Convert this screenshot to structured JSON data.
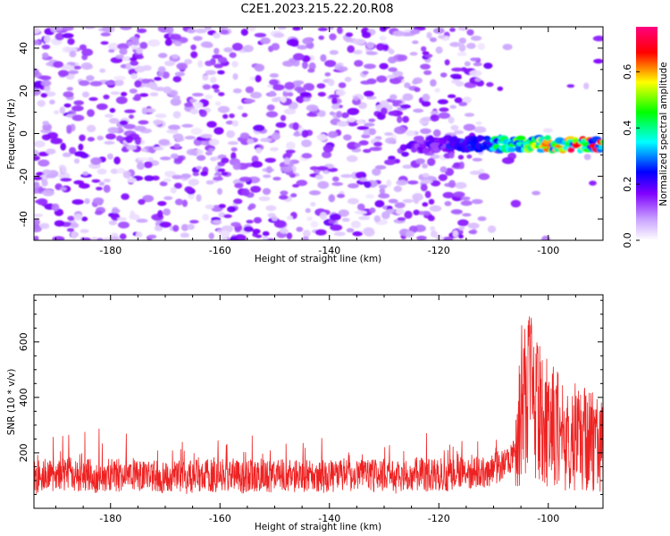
{
  "figure": {
    "title": "C2E1.2023.215.22.20.R08"
  },
  "chart_data": [
    {
      "type": "heatmap",
      "xlabel": "Height of straight line (km)",
      "ylabel": "Frequency (Hz)",
      "xlim": [
        -194,
        -90
      ],
      "ylim": [
        -50,
        50
      ],
      "xticks": [
        -180,
        -160,
        -140,
        -120,
        -100
      ],
      "yticks": [
        -40,
        -20,
        0,
        20,
        40
      ],
      "colorbar": {
        "label": "Normalized spectral amplitude",
        "range": [
          0.0,
          0.76
        ],
        "ticks": [
          0.0,
          0.2,
          0.4,
          0.6
        ],
        "colormap": [
          "#ffffff",
          "#8000ff",
          "#0000ff",
          "#00ffff",
          "#00ff00",
          "#ffff00",
          "#ff0000",
          "#ff0080"
        ]
      },
      "noise_amplitude": 0.12,
      "features": [
        {
          "x_start": -125,
          "x_end": -90,
          "freq_start": -8,
          "freq_end": -2,
          "peak_amplitude": 0.75
        }
      ]
    },
    {
      "type": "line",
      "xlabel": "Height of straight line (km)",
      "ylabel": "SNR (10 * v/v)",
      "xlim": [
        -194,
        -90
      ],
      "ylim": [
        0,
        770
      ],
      "xticks": [
        -180,
        -160,
        -140,
        -120,
        -100
      ],
      "yticks": [
        200,
        400,
        600
      ],
      "series": [
        {
          "color": "#ee2222",
          "x": [
            -194,
            -192,
            -190,
            -188,
            -186,
            -184,
            -182,
            -180,
            -178,
            -176,
            -174,
            -172,
            -170,
            -168,
            -166,
            -164,
            -162,
            -160,
            -158,
            -156,
            -154,
            -152,
            -150,
            -148,
            -146,
            -144,
            -142,
            -140,
            -138,
            -136,
            -134,
            -132,
            -130,
            -128,
            -126,
            -124,
            -122,
            -120,
            -118,
            -116,
            -114,
            -112,
            -110,
            -108,
            -106,
            -105,
            -104,
            -103,
            -102,
            -101,
            -100,
            -99,
            -98,
            -97,
            -96,
            -95,
            -94,
            -93,
            -92,
            -91,
            -90
          ],
          "y": [
            110,
            120,
            105,
            130,
            115,
            120,
            110,
            125,
            118,
            130,
            112,
            120,
            115,
            122,
            110,
            118,
            120,
            115,
            125,
            112,
            118,
            120,
            110,
            122,
            115,
            120,
            118,
            112,
            125,
            115,
            120,
            118,
            122,
            110,
            120,
            125,
            118,
            122,
            120,
            125,
            130,
            135,
            140,
            160,
            190,
            430,
            520,
            480,
            400,
            380,
            360,
            350,
            340,
            320,
            330,
            300,
            290,
            300,
            280,
            270,
            260
          ]
        }
      ]
    }
  ]
}
